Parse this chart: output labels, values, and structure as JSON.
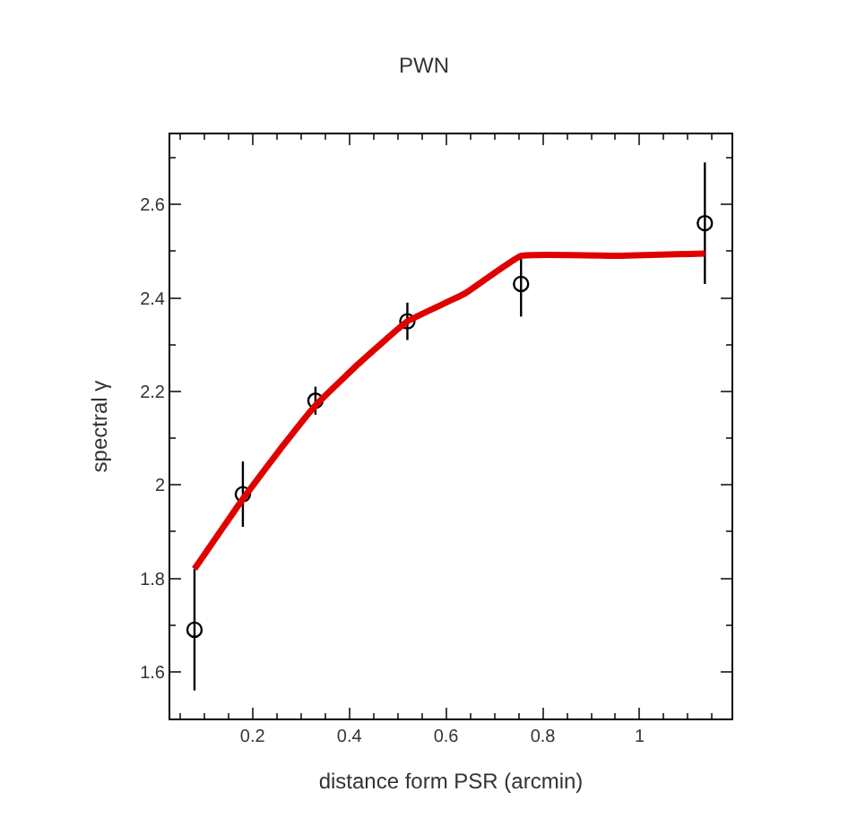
{
  "chart_data": {
    "type": "scatter",
    "title": "PWN",
    "xlabel": "distance form PSR (arcmin)",
    "ylabel": "spectral γ",
    "xlim": [
      0.03,
      1.19
    ],
    "ylim": [
      1.5,
      2.75
    ],
    "xticks": [
      0.2,
      0.4,
      0.6,
      0.8,
      1
    ],
    "yticks": [
      1.6,
      1.8,
      2,
      2.2,
      2.4,
      2.6
    ],
    "series": [
      {
        "color": "#000000",
        "marker": "circle",
        "x": [
          0.08,
          0.18,
          0.33,
          0.52,
          0.755,
          1.135
        ],
        "values": [
          1.69,
          1.98,
          2.18,
          2.35,
          2.43,
          2.56
        ],
        "errors": [
          [
            1.56,
            1.82
          ],
          [
            1.91,
            2.05
          ],
          [
            2.15,
            2.21
          ],
          [
            2.31,
            2.39
          ],
          [
            2.36,
            2.49
          ],
          [
            2.43,
            2.69
          ]
        ]
      },
      {
        "type": "line",
        "color": "#e00000",
        "marker": "none",
        "line_style": "solid",
        "x": [
          0.08,
          0.18,
          0.26,
          0.33,
          0.42,
          0.52,
          0.64,
          0.755,
          0.96,
          1.135
        ],
        "values": [
          1.82,
          1.97,
          2.08,
          2.17,
          2.26,
          2.35,
          2.41,
          2.49,
          2.49,
          2.495
        ]
      }
    ]
  }
}
